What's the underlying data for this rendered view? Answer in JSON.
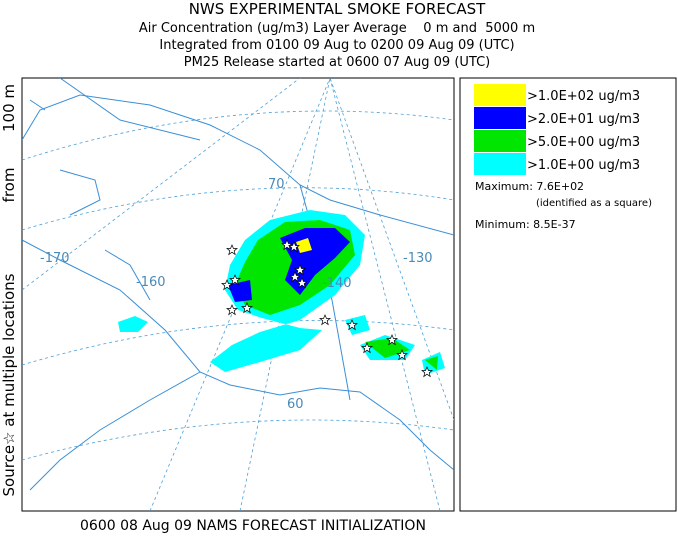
{
  "header": {
    "title": "NWS EXPERIMENTAL SMOKE FORECAST",
    "lines": [
      "Air Concentration (ug/m3) Layer Average    0 m and  5000 m",
      "Integrated from 0100 09 Aug to 0200 09 Aug 09 (UTC)",
      "PM25 Release started at 0600 07 Aug 09 (UTC)"
    ]
  },
  "side_label": [
    "Source☆ at multiple locations",
    "from",
    "100 m"
  ],
  "footer": "0600 08 Aug 09 NAMS FORECAST INITIALIZATION",
  "map_labels": [
    "-170",
    "-160",
    "-140",
    "-130",
    "70",
    "60"
  ],
  "legend": [
    {
      "label": ">1.0E+02 ug/m3",
      "color": "#ffff00"
    },
    {
      "label": ">2.0E+01 ug/m3",
      "color": "#0000ff"
    },
    {
      "label": ">5.0E+00 ug/m3",
      "color": "#00e600"
    },
    {
      "label": ">1.0E+00 ug/m3",
      "color": "#00ffff"
    }
  ],
  "stats": {
    "maximum": "Maximum: 7.6E+02",
    "maximum_note": "(identified as a square)",
    "minimum": "Minimum: 8.5E-37"
  }
}
